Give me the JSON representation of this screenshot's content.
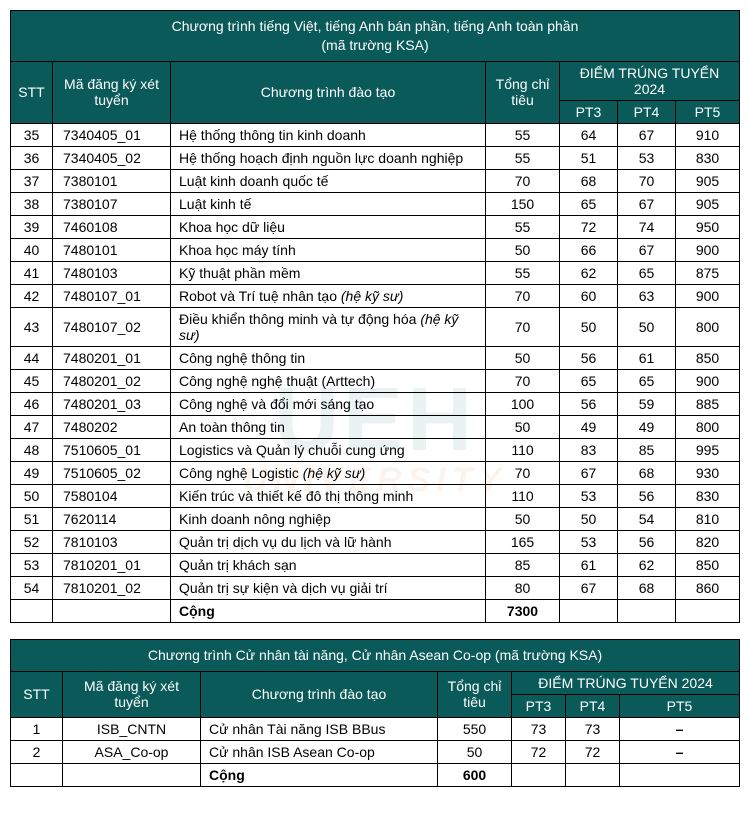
{
  "watermark": {
    "top": "UEH",
    "bottom": "UNIVERSITY"
  },
  "table1": {
    "title_line1": "Chương trình tiếng Việt, tiếng Anh bán phần, tiếng Anh toàn phần",
    "title_line2": "(mã trường KSA)",
    "headers": {
      "stt": "STT",
      "code": "Mã đăng ký xét tuyển",
      "program": "Chương trình đào tạo",
      "quota": "Tổng chỉ tiêu",
      "score_group": "ĐIỂM TRÚNG TUYỂN 2024",
      "pt3": "PT3",
      "pt4": "PT4",
      "pt5": "PT5"
    },
    "rows": [
      {
        "stt": "35",
        "code": "7340405_01",
        "name": "Hệ thống thông tin kinh doanh",
        "name_italic": "",
        "quota": "55",
        "pt3": "64",
        "pt4": "67",
        "pt5": "910"
      },
      {
        "stt": "36",
        "code": "7340405_02",
        "name": "Hệ thống hoạch định nguồn lực doanh nghiệp",
        "name_italic": "",
        "quota": "55",
        "pt3": "51",
        "pt4": "53",
        "pt5": "830"
      },
      {
        "stt": "37",
        "code": "7380101",
        "name": "Luật kinh doanh quốc tế",
        "name_italic": "",
        "quota": "70",
        "pt3": "68",
        "pt4": "70",
        "pt5": "905"
      },
      {
        "stt": "38",
        "code": "7380107",
        "name": "Luật kinh tế",
        "name_italic": "",
        "quota": "150",
        "pt3": "65",
        "pt4": "67",
        "pt5": "905"
      },
      {
        "stt": "39",
        "code": "7460108",
        "name": "Khoa học dữ liệu",
        "name_italic": "",
        "quota": "55",
        "pt3": "72",
        "pt4": "74",
        "pt5": "950"
      },
      {
        "stt": "40",
        "code": "7480101",
        "name": "Khoa học máy tính",
        "name_italic": "",
        "quota": "50",
        "pt3": "66",
        "pt4": "67",
        "pt5": "900"
      },
      {
        "stt": "41",
        "code": "7480103",
        "name": "Kỹ thuật phần mềm",
        "name_italic": "",
        "quota": "55",
        "pt3": "62",
        "pt4": "65",
        "pt5": "875"
      },
      {
        "stt": "42",
        "code": "7480107_01",
        "name": "Robot và Trí tuệ nhân tạo ",
        "name_italic": "(hệ kỹ sư)",
        "quota": "70",
        "pt3": "60",
        "pt4": "63",
        "pt5": "900"
      },
      {
        "stt": "43",
        "code": "7480107_02",
        "name": "Điều khiển thông minh và tự động hóa ",
        "name_italic": "(hệ kỹ sư)",
        "quota": "70",
        "pt3": "50",
        "pt4": "50",
        "pt5": "800"
      },
      {
        "stt": "44",
        "code": "7480201_01",
        "name": "Công nghệ thông tin",
        "name_italic": "",
        "quota": "50",
        "pt3": "56",
        "pt4": "61",
        "pt5": "850"
      },
      {
        "stt": "45",
        "code": "7480201_02",
        "name": "Công nghệ nghệ thuật (Arttech)",
        "name_italic": "",
        "quota": "70",
        "pt3": "65",
        "pt4": "65",
        "pt5": "900"
      },
      {
        "stt": "46",
        "code": "7480201_03",
        "name": "Công nghệ và đổi mới sáng tạo",
        "name_italic": "",
        "quota": "100",
        "pt3": "56",
        "pt4": "59",
        "pt5": "885"
      },
      {
        "stt": "47",
        "code": "7480202",
        "name": "An toàn thông tin",
        "name_italic": "",
        "quota": "50",
        "pt3": "49",
        "pt4": "49",
        "pt5": "800"
      },
      {
        "stt": "48",
        "code": "7510605_01",
        "name": "Logistics và Quản lý chuỗi cung ứng",
        "name_italic": "",
        "quota": "110",
        "pt3": "83",
        "pt4": "85",
        "pt5": "995"
      },
      {
        "stt": "49",
        "code": "7510605_02",
        "name": "Công nghệ Logistic ",
        "name_italic": "(hệ kỹ sư)",
        "quota": "70",
        "pt3": "67",
        "pt4": "68",
        "pt5": "930"
      },
      {
        "stt": "50",
        "code": "7580104",
        "name": "Kiến trúc và thiết kế đô thị thông minh",
        "name_italic": "",
        "quota": "110",
        "pt3": "53",
        "pt4": "56",
        "pt5": "830"
      },
      {
        "stt": "51",
        "code": "7620114",
        "name": "Kinh doanh nông nghiệp",
        "name_italic": "",
        "quota": "50",
        "pt3": "50",
        "pt4": "54",
        "pt5": "810"
      },
      {
        "stt": "52",
        "code": "7810103",
        "name": "Quản trị dịch vụ du lịch và lữ hành",
        "name_italic": "",
        "quota": "165",
        "pt3": "53",
        "pt4": "56",
        "pt5": "820"
      },
      {
        "stt": "53",
        "code": "7810201_01",
        "name": "Quản trị khách sạn",
        "name_italic": "",
        "quota": "85",
        "pt3": "61",
        "pt4": "62",
        "pt5": "850"
      },
      {
        "stt": "54",
        "code": "7810201_02",
        "name": "Quản trị sự kiện và dịch vụ giải trí",
        "name_italic": "",
        "quota": "80",
        "pt3": "67",
        "pt4": "68",
        "pt5": "860"
      }
    ],
    "total_label": "Cộng",
    "total_quota": "7300"
  },
  "table2": {
    "title": "Chương trình Cử nhân tài năng, Cử nhân Asean Co-op (mã trường KSA)",
    "headers": {
      "stt": "STT",
      "code": "Mã đăng ký xét tuyển",
      "program": "Chương trình đào tạo",
      "quota": "Tổng chỉ tiêu",
      "score_group": "ĐIỂM TRÚNG TUYỂN 2024",
      "pt3": "PT3",
      "pt4": "PT4",
      "pt5": "PT5"
    },
    "rows": [
      {
        "stt": "1",
        "code": "ISB_CNTN",
        "name": "Cử nhân Tài năng ISB BBus",
        "quota": "550",
        "pt3": "73",
        "pt4": "73",
        "pt5": "–"
      },
      {
        "stt": "2",
        "code": "ASA_Co-op",
        "name": "Cử nhân ISB Asean Co-op",
        "quota": "50",
        "pt3": "72",
        "pt4": "72",
        "pt5": "–"
      }
    ],
    "total_label": "Cộng",
    "total_quota": "600"
  },
  "col_widths": {
    "stt": "42px",
    "code": "118px",
    "name": "auto",
    "quota": "74px",
    "pt3": "58px",
    "pt4": "58px",
    "pt5": "64px"
  },
  "colors": {
    "header_bg": "#0a5a5a",
    "header_fg": "#ffffff",
    "border": "#000000"
  }
}
